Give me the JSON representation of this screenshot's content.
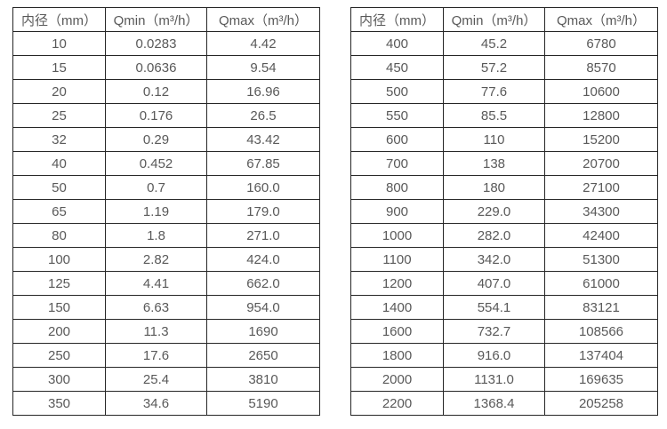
{
  "colors": {
    "border": "#262626",
    "text": "#595959",
    "background": "#ffffff"
  },
  "chart_data": [
    {
      "type": "table",
      "name": "flow-range-table-dn10-350",
      "headers": [
        "内径（mm）",
        "Qmin（m³/h）",
        "Qmax（m³/h）"
      ],
      "rows": [
        [
          "10",
          "0.0283",
          "4.42"
        ],
        [
          "15",
          "0.0636",
          "9.54"
        ],
        [
          "20",
          "0.12",
          "16.96"
        ],
        [
          "25",
          "0.176",
          "26.5"
        ],
        [
          "32",
          "0.29",
          "43.42"
        ],
        [
          "40",
          "0.452",
          "67.85"
        ],
        [
          "50",
          "0.7",
          "160.0"
        ],
        [
          "65",
          "1.19",
          "179.0"
        ],
        [
          "80",
          "1.8",
          "271.0"
        ],
        [
          "100",
          "2.82",
          "424.0"
        ],
        [
          "125",
          "4.41",
          "662.0"
        ],
        [
          "150",
          "6.63",
          "954.0"
        ],
        [
          "200",
          "11.3",
          "1690"
        ],
        [
          "250",
          "17.6",
          "2650"
        ],
        [
          "300",
          "25.4",
          "3810"
        ],
        [
          "350",
          "34.6",
          "5190"
        ]
      ]
    },
    {
      "type": "table",
      "name": "flow-range-table-dn400-2200",
      "headers": [
        "内径（mm）",
        "Qmin（m³/h）",
        "Qmax（m³/h）"
      ],
      "rows": [
        [
          "400",
          "45.2",
          "6780"
        ],
        [
          "450",
          "57.2",
          "8570"
        ],
        [
          "500",
          "77.6",
          "10600"
        ],
        [
          "550",
          "85.5",
          "12800"
        ],
        [
          "600",
          "110",
          "15200"
        ],
        [
          "700",
          "138",
          "20700"
        ],
        [
          "800",
          "180",
          "27100"
        ],
        [
          "900",
          "229.0",
          "34300"
        ],
        [
          "1000",
          "282.0",
          "42400"
        ],
        [
          "1100",
          "342.0",
          "51300"
        ],
        [
          "1200",
          "407.0",
          "61000"
        ],
        [
          "1400",
          "554.1",
          "83121"
        ],
        [
          "1600",
          "732.7",
          "108566"
        ],
        [
          "1800",
          "916.0",
          "137404"
        ],
        [
          "2000",
          "1131.0",
          "169635"
        ],
        [
          "2200",
          "1368.4",
          "205258"
        ]
      ]
    }
  ]
}
